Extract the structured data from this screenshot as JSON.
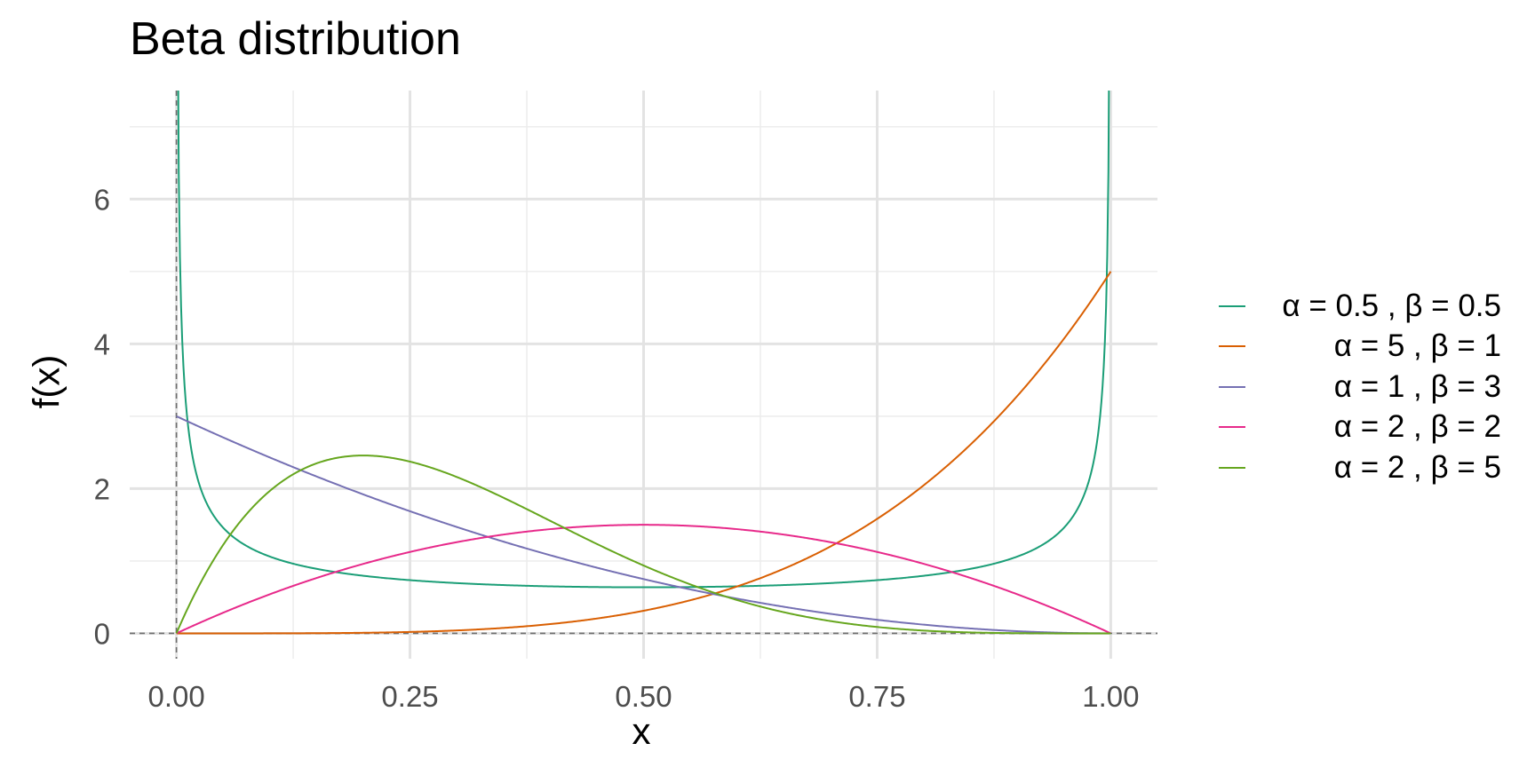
{
  "chart_data": {
    "type": "line",
    "title": "Beta distribution",
    "xlabel": "x",
    "ylabel": "f(x)",
    "xlim": [
      -0.05,
      1.05
    ],
    "ylim": [
      -0.35,
      7.5
    ],
    "x_ticks": [
      0.0,
      0.25,
      0.5,
      0.75,
      1.0
    ],
    "x_tick_labels": [
      "0.00",
      "0.25",
      "0.50",
      "0.75",
      "1.00"
    ],
    "y_ticks": [
      0,
      2,
      4,
      6
    ],
    "y_tick_labels": [
      "0",
      "2",
      "4",
      "6"
    ],
    "grid": true,
    "reference_lines": {
      "vertical_at_x": 0,
      "horizontal_at_y": 0,
      "style": "dashed"
    },
    "legend_position": "right",
    "series": [
      {
        "name": "α = 0.5 , β = 0.5",
        "alpha": 0.5,
        "beta": 0.5,
        "color": "#1B9E77",
        "x": [
          0.001,
          0.005,
          0.01,
          0.02,
          0.05,
          0.1,
          0.2,
          0.3,
          0.5,
          0.7,
          0.8,
          0.9,
          0.95,
          0.98,
          0.99,
          0.995,
          0.999
        ],
        "values": [
          10.07,
          4.51,
          3.2,
          2.27,
          1.46,
          1.06,
          0.8,
          0.69,
          0.64,
          0.69,
          0.8,
          1.06,
          1.46,
          2.27,
          3.2,
          4.51,
          10.07
        ]
      },
      {
        "name": "α = 5 , β = 1",
        "alpha": 5,
        "beta": 1,
        "color": "#D95F02",
        "x": [
          0,
          0.1,
          0.2,
          0.3,
          0.4,
          0.5,
          0.6,
          0.7,
          0.8,
          0.9,
          1.0
        ],
        "values": [
          0,
          0.0005,
          0.008,
          0.0405,
          0.128,
          0.3125,
          0.648,
          1.2005,
          2.048,
          3.2805,
          5.0
        ]
      },
      {
        "name": "α = 1 , β = 3",
        "alpha": 1,
        "beta": 3,
        "color": "#7570B3",
        "x": [
          0,
          0.1,
          0.2,
          0.3,
          0.4,
          0.5,
          0.6,
          0.7,
          0.8,
          0.9,
          1.0
        ],
        "values": [
          3.0,
          2.43,
          1.92,
          1.47,
          1.08,
          0.75,
          0.48,
          0.27,
          0.12,
          0.03,
          0
        ]
      },
      {
        "name": "α = 2 , β = 2",
        "alpha": 2,
        "beta": 2,
        "color": "#E7298A",
        "x": [
          0,
          0.1,
          0.2,
          0.3,
          0.4,
          0.5,
          0.6,
          0.7,
          0.8,
          0.9,
          1.0
        ],
        "values": [
          0,
          0.54,
          0.96,
          1.26,
          1.44,
          1.5,
          1.44,
          1.26,
          0.96,
          0.54,
          0
        ]
      },
      {
        "name": "α = 2 , β = 5",
        "alpha": 2,
        "beta": 5,
        "color": "#66A61E",
        "x": [
          0,
          0.1,
          0.2,
          0.3,
          0.4,
          0.5,
          0.6,
          0.7,
          0.8,
          0.9,
          1.0
        ],
        "values": [
          0,
          1.968,
          2.458,
          2.161,
          1.555,
          0.9375,
          0.461,
          0.17,
          0.0384,
          0.0027,
          0
        ]
      }
    ]
  }
}
